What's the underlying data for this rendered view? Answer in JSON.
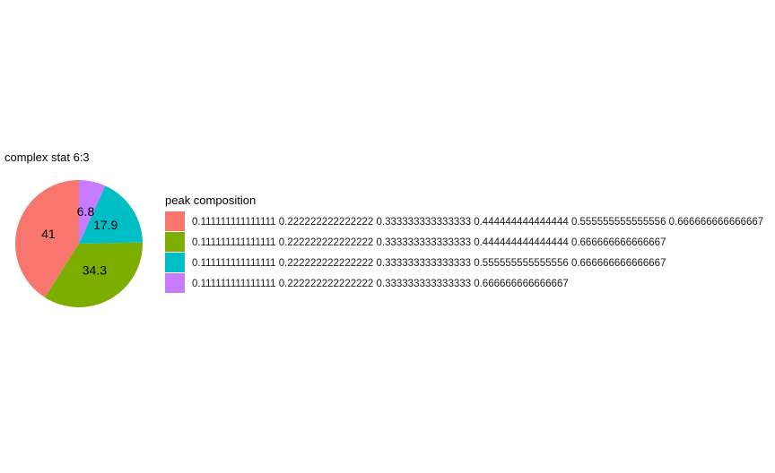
{
  "chart_data": {
    "type": "pie",
    "title": "complex stat 6:3",
    "legend_title": "peak composition",
    "legend_position": "right",
    "grid": false,
    "slices": [
      {
        "label": "0.111111111111111 0.222222222222222 0.333333333333333 0.444444444444444 0.555555555555556 0.666666666666667",
        "value": 41,
        "color": "#F8766D"
      },
      {
        "label": "0.111111111111111 0.222222222222222 0.333333333333333 0.444444444444444 0.666666666666667",
        "value": 34.3,
        "color": "#7CAE00"
      },
      {
        "label": "0.111111111111111 0.222222222222222 0.333333333333333 0.555555555555556 0.666666666666667",
        "value": 17.9,
        "color": "#00BFC4"
      },
      {
        "label": "0.111111111111111 0.222222222222222 0.333333333333333 0.666666666666667",
        "value": 6.8,
        "color": "#C77CFF"
      }
    ]
  }
}
